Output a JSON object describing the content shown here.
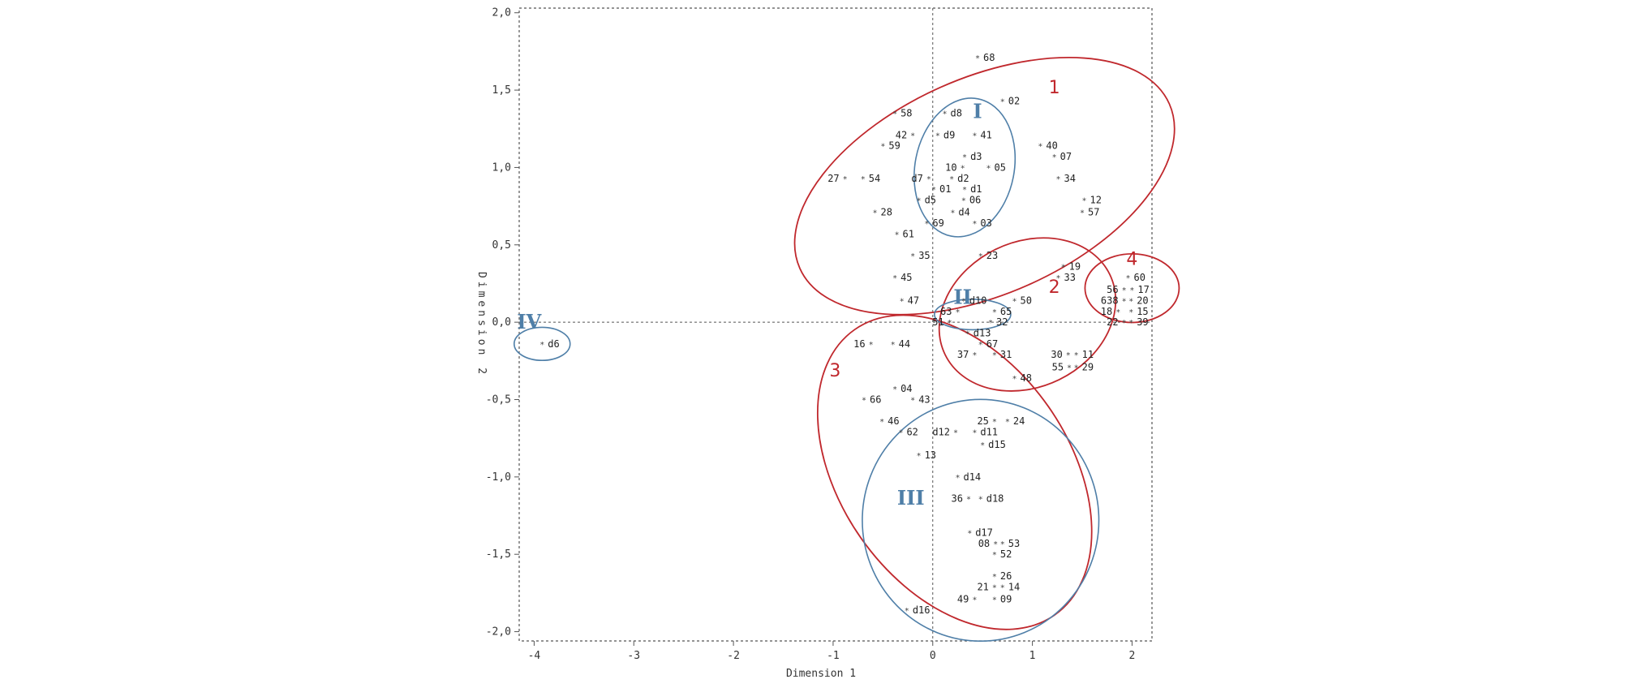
{
  "chart_data": {
    "type": "scatter",
    "xlabel": "Dimension 1",
    "ylabel": "Dimension 2",
    "xlim": [
      -4.15,
      2.2
    ],
    "ylim": [
      -2.06,
      2.03
    ],
    "x_ticks": [
      -4,
      -3,
      -2,
      -1,
      0,
      1,
      2
    ],
    "x_tick_labels": [
      "-4",
      "-3",
      "-2",
      "-1",
      "0",
      "1",
      "2"
    ],
    "y_ticks": [
      2.0,
      1.5,
      1.0,
      0.5,
      0.0,
      -0.5,
      -1.0,
      -1.5,
      -2.0
    ],
    "y_tick_labels": [
      "2,0",
      "1,5",
      "1,0",
      "0,5",
      "0,0",
      "-0,5",
      "-1,0",
      "-1,5",
      "-2,0"
    ],
    "grid": false,
    "marker": "*",
    "colors": {
      "red_group": "#c0282d",
      "blue_group": "#4f7fa8",
      "axes": "#555555"
    },
    "points": [
      {
        "label": "68",
        "x": 0.45,
        "y": 1.71,
        "side": "right"
      },
      {
        "label": "02",
        "x": 0.7,
        "y": 1.43,
        "side": "right"
      },
      {
        "label": "58",
        "x": -0.38,
        "y": 1.35,
        "side": "right"
      },
      {
        "label": "d8",
        "x": 0.12,
        "y": 1.35,
        "side": "right"
      },
      {
        "label": "42",
        "x": -0.2,
        "y": 1.21,
        "side": "left"
      },
      {
        "label": "d9",
        "x": 0.05,
        "y": 1.21,
        "side": "right"
      },
      {
        "label": "41",
        "x": 0.42,
        "y": 1.21,
        "side": "right"
      },
      {
        "label": "59",
        "x": -0.5,
        "y": 1.14,
        "side": "right"
      },
      {
        "label": "40",
        "x": 1.08,
        "y": 1.14,
        "side": "right"
      },
      {
        "label": "d3",
        "x": 0.32,
        "y": 1.07,
        "side": "right"
      },
      {
        "label": "07",
        "x": 1.22,
        "y": 1.07,
        "side": "right"
      },
      {
        "label": "10",
        "x": 0.3,
        "y": 1.0,
        "side": "left"
      },
      {
        "label": "05",
        "x": 0.56,
        "y": 1.0,
        "side": "right"
      },
      {
        "label": "27",
        "x": -0.88,
        "y": 0.93,
        "side": "left"
      },
      {
        "label": "54",
        "x": -0.7,
        "y": 0.93,
        "side": "right"
      },
      {
        "label": "d7",
        "x": -0.04,
        "y": 0.93,
        "side": "left"
      },
      {
        "label": "d2",
        "x": 0.19,
        "y": 0.93,
        "side": "right"
      },
      {
        "label": "34",
        "x": 1.26,
        "y": 0.93,
        "side": "right"
      },
      {
        "label": "01",
        "x": 0.01,
        "y": 0.86,
        "side": "right"
      },
      {
        "label": "d1",
        "x": 0.32,
        "y": 0.86,
        "side": "right"
      },
      {
        "label": "d5",
        "x": -0.14,
        "y": 0.79,
        "side": "right"
      },
      {
        "label": "06",
        "x": 0.31,
        "y": 0.79,
        "side": "right"
      },
      {
        "label": "12",
        "x": 1.52,
        "y": 0.79,
        "side": "right"
      },
      {
        "label": "28",
        "x": -0.58,
        "y": 0.71,
        "side": "right"
      },
      {
        "label": "d4",
        "x": 0.2,
        "y": 0.71,
        "side": "right"
      },
      {
        "label": "57",
        "x": 1.5,
        "y": 0.71,
        "side": "right"
      },
      {
        "label": "69",
        "x": -0.06,
        "y": 0.64,
        "side": "right"
      },
      {
        "label": "03",
        "x": 0.42,
        "y": 0.64,
        "side": "right"
      },
      {
        "label": "61",
        "x": -0.36,
        "y": 0.57,
        "side": "right"
      },
      {
        "label": "35",
        "x": -0.2,
        "y": 0.43,
        "side": "right"
      },
      {
        "label": "23",
        "x": 0.48,
        "y": 0.43,
        "side": "right"
      },
      {
        "label": "19",
        "x": 1.31,
        "y": 0.36,
        "side": "right"
      },
      {
        "label": "45",
        "x": -0.38,
        "y": 0.29,
        "side": "right"
      },
      {
        "label": "33",
        "x": 1.26,
        "y": 0.29,
        "side": "right"
      },
      {
        "label": "60",
        "x": 1.96,
        "y": 0.29,
        "side": "right"
      },
      {
        "label": "56",
        "x": 1.92,
        "y": 0.21,
        "side": "left"
      },
      {
        "label": "17",
        "x": 2.0,
        "y": 0.21,
        "side": "right"
      },
      {
        "label": "47",
        "x": -0.31,
        "y": 0.14,
        "side": "right"
      },
      {
        "label": "d10",
        "x": 0.31,
        "y": 0.14,
        "side": "right"
      },
      {
        "label": "50",
        "x": 0.82,
        "y": 0.14,
        "side": "right"
      },
      {
        "label": "638",
        "x": 1.92,
        "y": 0.14,
        "side": "left"
      },
      {
        "label": "20",
        "x": 1.99,
        "y": 0.14,
        "side": "right"
      },
      {
        "label": "63",
        "x": 0.25,
        "y": 0.07,
        "side": "left"
      },
      {
        "label": "65",
        "x": 0.62,
        "y": 0.07,
        "side": "right"
      },
      {
        "label": "18",
        "x": 1.86,
        "y": 0.07,
        "side": "left"
      },
      {
        "label": "15",
        "x": 1.99,
        "y": 0.07,
        "side": "right"
      },
      {
        "label": "51",
        "x": 0.17,
        "y": 0.0,
        "side": "left"
      },
      {
        "label": "32",
        "x": 0.58,
        "y": 0.0,
        "side": "right"
      },
      {
        "label": "22",
        "x": 1.92,
        "y": 0.0,
        "side": "left"
      },
      {
        "label": "39",
        "x": 1.99,
        "y": 0.0,
        "side": "right"
      },
      {
        "label": "d13",
        "x": 0.35,
        "y": -0.07,
        "side": "right"
      },
      {
        "label": "d6",
        "x": -3.92,
        "y": -0.14,
        "side": "right"
      },
      {
        "label": "16",
        "x": -0.62,
        "y": -0.14,
        "side": "left"
      },
      {
        "label": "44",
        "x": -0.4,
        "y": -0.14,
        "side": "right"
      },
      {
        "label": "67",
        "x": 0.48,
        "y": -0.14,
        "side": "right"
      },
      {
        "label": "37",
        "x": 0.42,
        "y": -0.21,
        "side": "left"
      },
      {
        "label": "31",
        "x": 0.62,
        "y": -0.21,
        "side": "right"
      },
      {
        "label": "30",
        "x": 1.36,
        "y": -0.21,
        "side": "left"
      },
      {
        "label": "11",
        "x": 1.44,
        "y": -0.21,
        "side": "right"
      },
      {
        "label": "55",
        "x": 1.37,
        "y": -0.29,
        "side": "left"
      },
      {
        "label": "29",
        "x": 1.44,
        "y": -0.29,
        "side": "right"
      },
      {
        "label": "48",
        "x": 0.82,
        "y": -0.36,
        "side": "right"
      },
      {
        "label": "04",
        "x": -0.38,
        "y": -0.43,
        "side": "right"
      },
      {
        "label": "66",
        "x": -0.69,
        "y": -0.5,
        "side": "right"
      },
      {
        "label": "43",
        "x": -0.2,
        "y": -0.5,
        "side": "right"
      },
      {
        "label": "46",
        "x": -0.51,
        "y": -0.64,
        "side": "right"
      },
      {
        "label": "25",
        "x": 0.62,
        "y": -0.64,
        "side": "left"
      },
      {
        "label": "24",
        "x": 0.75,
        "y": -0.64,
        "side": "right"
      },
      {
        "label": "62",
        "x": -0.32,
        "y": -0.71,
        "side": "right"
      },
      {
        "label": "d12",
        "x": 0.23,
        "y": -0.71,
        "side": "left"
      },
      {
        "label": "d11",
        "x": 0.42,
        "y": -0.71,
        "side": "right"
      },
      {
        "label": "d15",
        "x": 0.5,
        "y": -0.79,
        "side": "right"
      },
      {
        "label": "13",
        "x": -0.14,
        "y": -0.86,
        "side": "right"
      },
      {
        "label": "d14",
        "x": 0.25,
        "y": -1.0,
        "side": "right"
      },
      {
        "label": "36",
        "x": 0.36,
        "y": -1.14,
        "side": "left"
      },
      {
        "label": "d18",
        "x": 0.48,
        "y": -1.14,
        "side": "right"
      },
      {
        "label": "d17",
        "x": 0.37,
        "y": -1.36,
        "side": "right"
      },
      {
        "label": "08",
        "x": 0.63,
        "y": -1.43,
        "side": "left"
      },
      {
        "label": "53",
        "x": 0.7,
        "y": -1.43,
        "side": "right"
      },
      {
        "label": "52",
        "x": 0.62,
        "y": -1.5,
        "side": "right"
      },
      {
        "label": "26",
        "x": 0.62,
        "y": -1.64,
        "side": "right"
      },
      {
        "label": "21",
        "x": 0.62,
        "y": -1.71,
        "side": "left"
      },
      {
        "label": "14",
        "x": 0.7,
        "y": -1.71,
        "side": "right"
      },
      {
        "label": "49",
        "x": 0.42,
        "y": -1.79,
        "side": "left"
      },
      {
        "label": "09",
        "x": 0.62,
        "y": -1.79,
        "side": "right"
      },
      {
        "label": "d16",
        "x": -0.26,
        "y": -1.86,
        "side": "right"
      }
    ],
    "clusters": [
      {
        "label": "1",
        "style": "red",
        "cx": 0.52,
        "cy": 0.88,
        "rx": 1.59,
        "ry": 0.85,
        "rotation": -24,
        "label_x": 1.22,
        "label_y": 1.48
      },
      {
        "label": "2",
        "style": "red",
        "cx": 0.95,
        "cy": 0.05,
        "rx": 0.72,
        "ry": 0.57,
        "rotation": -26,
        "label_x": 1.22,
        "label_y": 0.19
      },
      {
        "label": "3",
        "style": "red",
        "cx": 0.22,
        "cy": -0.97,
        "rx": 1.37,
        "ry": 0.9,
        "rotation": 55,
        "label_x": -0.98,
        "label_y": -0.35
      },
      {
        "label": "4",
        "style": "red",
        "cx": 2.0,
        "cy": 0.22,
        "rx": 0.37,
        "ry": 0.27,
        "rotation": 0,
        "label_x": 2.0,
        "label_y": 0.37
      },
      {
        "label": "I",
        "style": "blue",
        "cx": 0.32,
        "cy": 1.0,
        "rx": 0.55,
        "ry": 0.39,
        "rotation": -79,
        "label_x": 0.45,
        "label_y": 1.32
      },
      {
        "label": "II",
        "style": "blue",
        "cx": 0.4,
        "cy": 0.05,
        "rx": 0.3,
        "ry": 0.12,
        "rotation": 0,
        "label_x": 0.3,
        "label_y": 0.12
      },
      {
        "label": "III",
        "style": "blue",
        "cx": 0.48,
        "cy": -1.28,
        "rx": 0.95,
        "ry": 0.93,
        "rotation": 90,
        "label_x": -0.22,
        "label_y": -1.18
      },
      {
        "label": "IV",
        "style": "blue",
        "cx": -3.92,
        "cy": -0.14,
        "rx": 0.22,
        "ry": 0.13,
        "rotation": 0,
        "label_x": -4.05,
        "label_y": -0.04
      }
    ]
  }
}
